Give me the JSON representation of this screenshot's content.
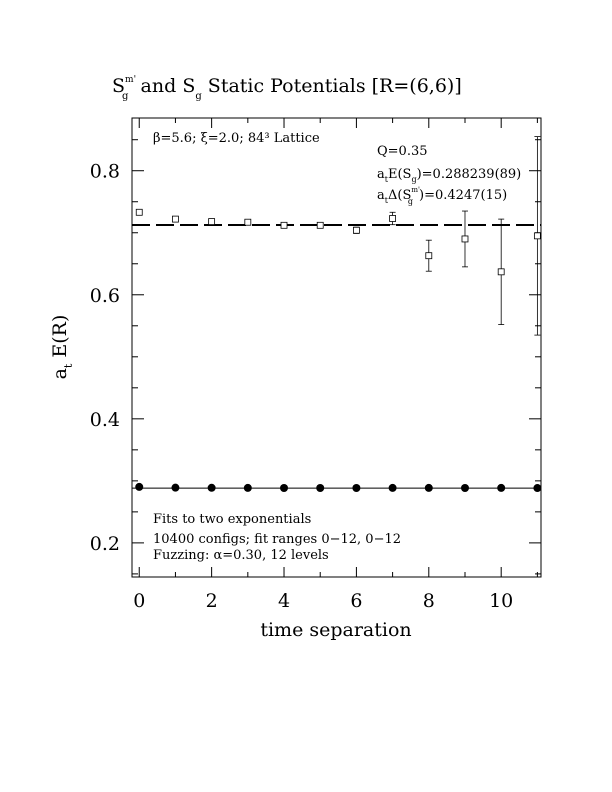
{
  "chart_data": {
    "type": "scatter",
    "title": {
      "main": "S",
      "main_sub": "g",
      "main_sup": "m'",
      "rest1": "and S",
      "rest1_sub": "g",
      "rest2": "Static Potentials [R=(6,6)]"
    },
    "xlabel": "time separation",
    "ylabel": "a",
    "ylabel_sub": "t",
    "ylabel_rest": "E(R)",
    "xlim": [
      -0.2,
      11.1
    ],
    "ylim": [
      0.145,
      0.885
    ],
    "x_ticks": [
      0,
      2,
      4,
      6,
      8,
      10
    ],
    "y_ticks": [
      0.2,
      0.4,
      0.6,
      0.8
    ],
    "x_tick_labels": [
      "0",
      "2",
      "4",
      "6",
      "8",
      "10"
    ],
    "y_tick_labels": [
      "0.2",
      "0.4",
      "0.6",
      "0.8"
    ],
    "series": [
      {
        "marker": "open-square",
        "x": [
          0,
          1,
          2,
          3,
          4,
          5,
          6,
          7,
          8,
          9,
          10,
          11
        ],
        "y": [
          0.733,
          0.722,
          0.718,
          0.717,
          0.712,
          0.712,
          0.704,
          0.723,
          0.663,
          0.69,
          0.637,
          0.695
        ],
        "err": [
          0.002,
          0.002,
          0.002,
          0.002,
          0.003,
          0.004,
          0.005,
          0.01,
          0.025,
          0.045,
          0.085,
          0.16
        ]
      },
      {
        "marker": "filled-circle",
        "x": [
          0,
          1,
          2,
          3,
          4,
          5,
          6,
          7,
          8,
          9,
          10,
          11
        ],
        "y": [
          0.2902,
          0.289,
          0.2888,
          0.2886,
          0.2885,
          0.2885,
          0.2885,
          0.2886,
          0.2886,
          0.2885,
          0.2886,
          0.2884
        ],
        "err": [
          0.001,
          0.001,
          0.001,
          0.001,
          0.001,
          0.001,
          0.001,
          0.001,
          0.001,
          0.001,
          0.001,
          0.001
        ]
      }
    ],
    "fit_lines": [
      {
        "style": "dashed",
        "y": 0.7125
      },
      {
        "style": "solid",
        "y": 0.2882
      }
    ],
    "annotations": {
      "lattice": "β=5.6; ξ=2.0; 84³ Lattice",
      "q": "Q=0.35",
      "energy_pre": "a",
      "energy_pre_sub": "t",
      "energy_mid": "E(S",
      "energy_mid_sub": "g",
      "energy_val": ")=0.288239(89)",
      "gap_pre": "a",
      "gap_pre_sub": "t",
      "gap_mid": "Δ(S",
      "gap_mid_sub": "g",
      "gap_mid_sup": "m'",
      "gap_val": ")=0.4247(15)",
      "fit_line1": "Fits to two exponentials",
      "fit_line2": "10400 configs; fit ranges 0−12, 0−12",
      "fit_line3": "Fuzzing: α=0.30, 12 levels"
    }
  }
}
